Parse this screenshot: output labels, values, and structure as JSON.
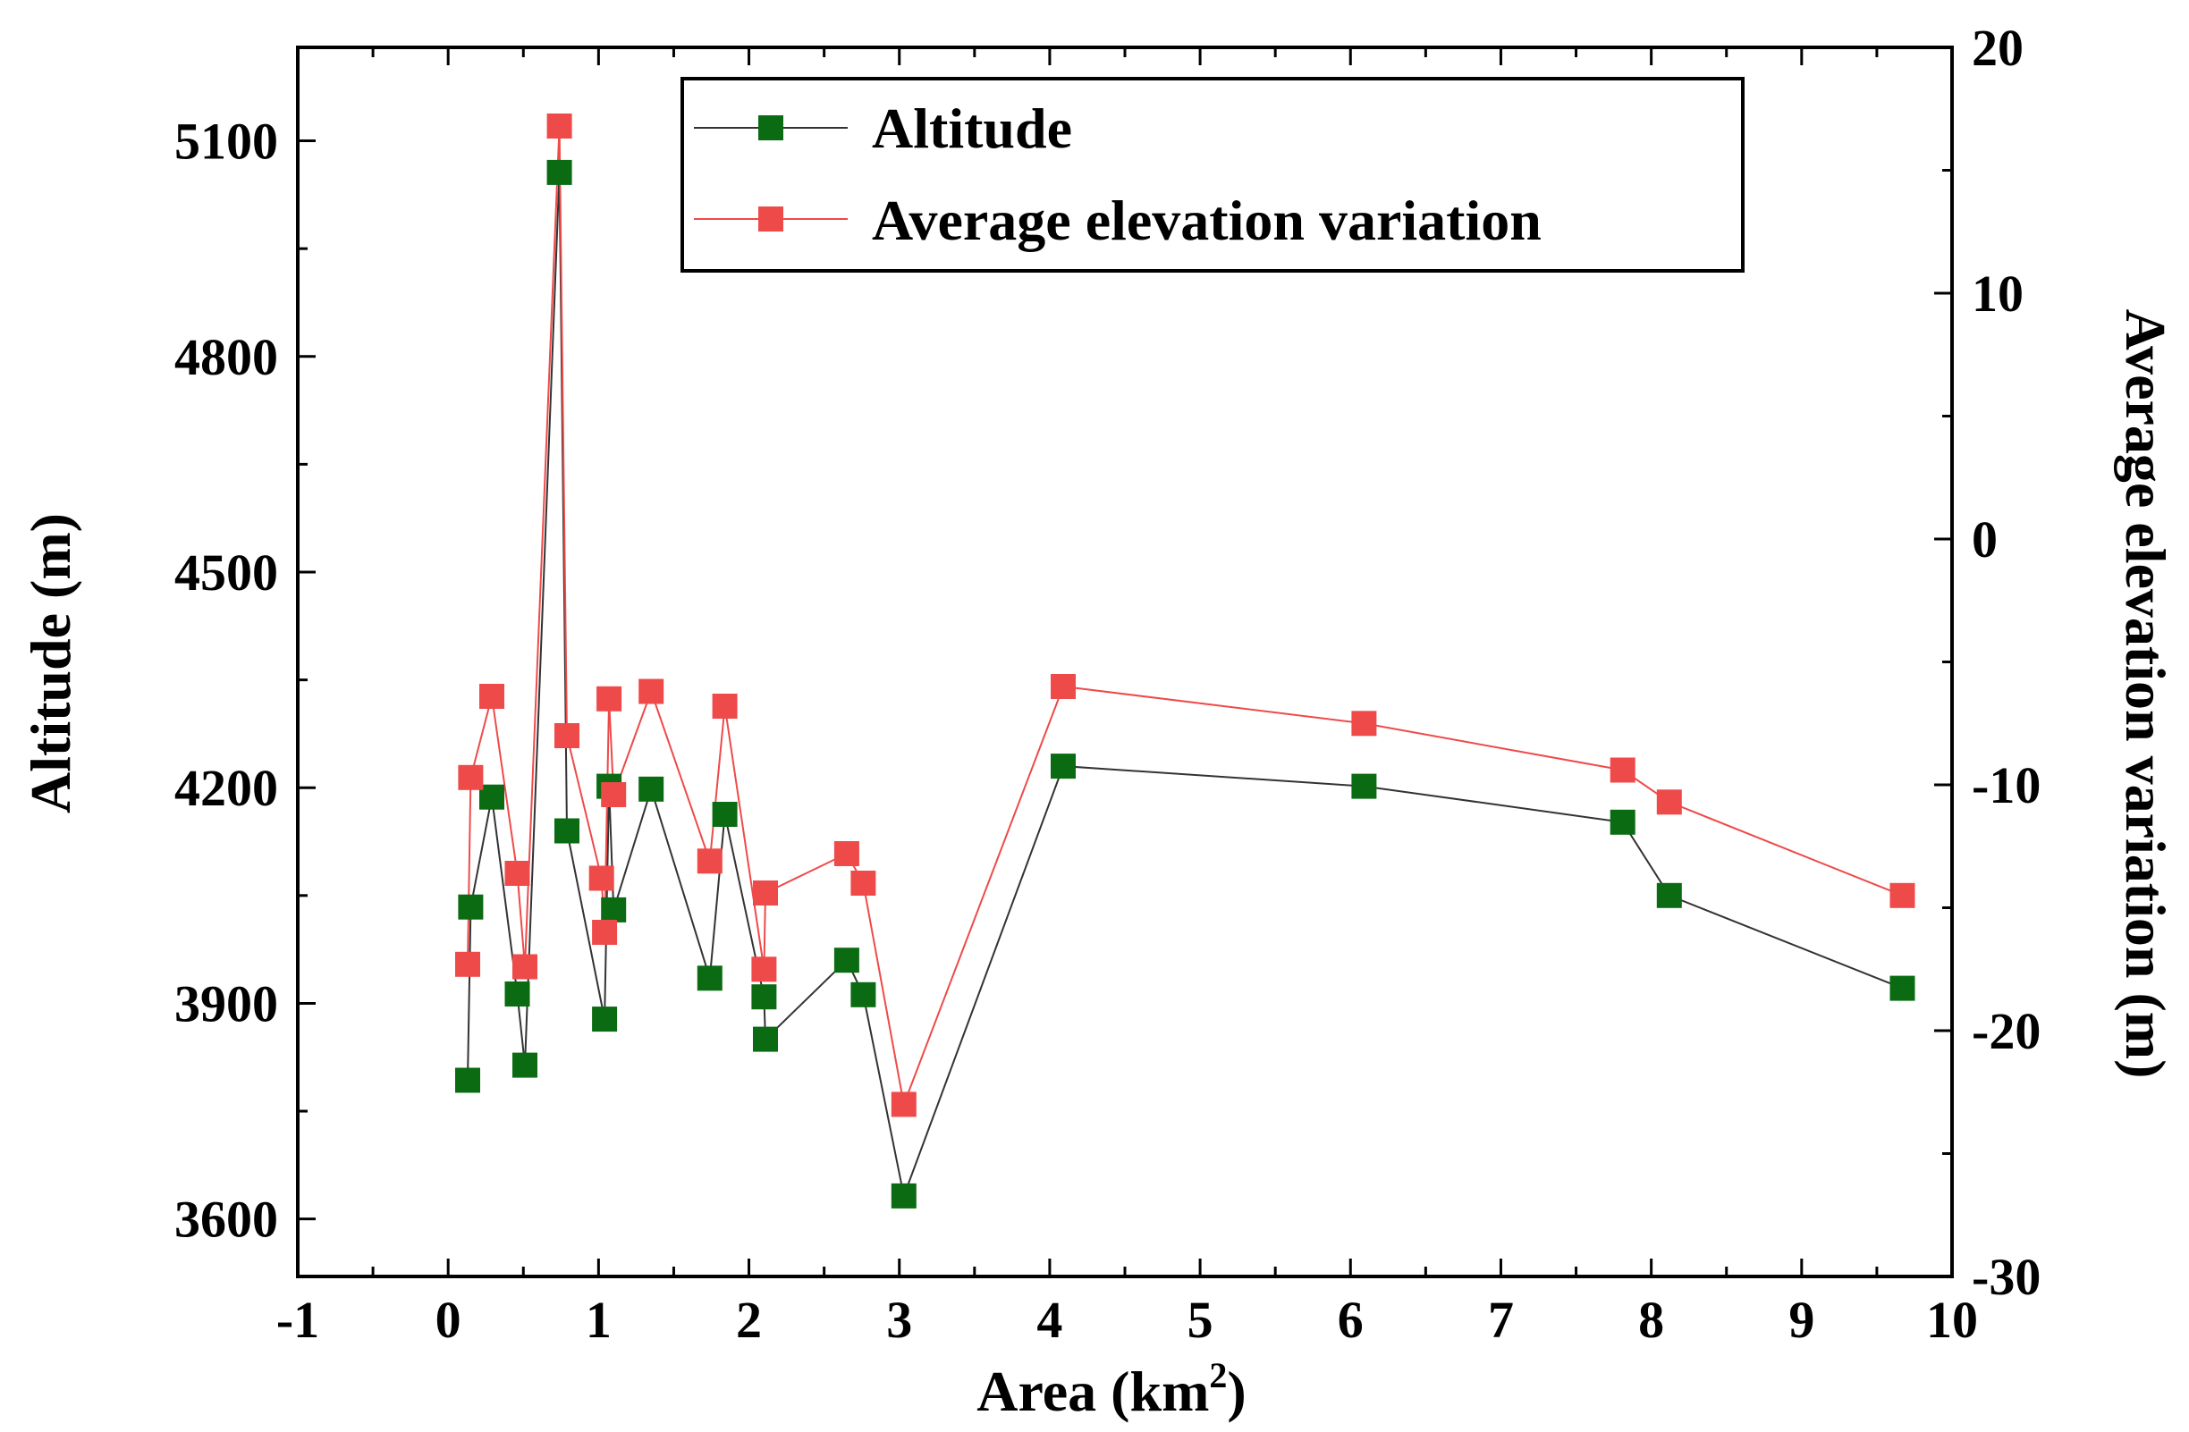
{
  "chart_data": {
    "type": "line",
    "title": "",
    "xlabel": "Area (km",
    "xlabel_superscript": "2",
    "xlabel_suffix": ")",
    "ylabel_left": "Altitude (m)",
    "ylabel_right": "Average elevation variation (m)",
    "xlim": [
      -1,
      10
    ],
    "ylim_left": [
      3520,
      5230
    ],
    "ylim_right": [
      -30,
      20
    ],
    "x_ticks": [
      "-1",
      "0",
      "1",
      "2",
      "3",
      "4",
      "5",
      "6",
      "7",
      "8",
      "9",
      "10"
    ],
    "x_tick_values": [
      -1,
      0,
      1,
      2,
      3,
      4,
      5,
      6,
      7,
      8,
      9,
      10
    ],
    "y_left_ticks": [
      "3600",
      "3900",
      "4200",
      "4500",
      "4800",
      "5100"
    ],
    "y_left_tick_values": [
      3600,
      3900,
      4200,
      4500,
      4800,
      5100
    ],
    "y_right_ticks": [
      "-30",
      "-20",
      "-10",
      "0",
      "10",
      "20"
    ],
    "y_right_tick_values": [
      -30,
      -20,
      -10,
      0,
      10,
      20
    ],
    "legend_position": "top-center",
    "series": [
      {
        "name": "Altitude",
        "axis": "left",
        "color": "#0a6b12",
        "line_color": "#333333",
        "x": [
          0.13,
          0.15,
          0.29,
          0.46,
          0.51,
          0.74,
          0.79,
          1.04,
          1.07,
          1.1,
          1.35,
          1.74,
          1.84,
          2.1,
          2.11,
          2.65,
          2.76,
          3.03,
          4.09,
          6.09,
          7.81,
          8.12,
          9.67
        ],
        "y": [
          3793,
          4034,
          4187,
          3913,
          3814,
          5056,
          4140,
          3878,
          4202,
          4030,
          4198,
          3935,
          4163,
          3909,
          3850,
          3960,
          3912,
          3632,
          4230,
          4202,
          4152,
          4050,
          3921
        ]
      },
      {
        "name": "Average elevation variation",
        "axis": "right",
        "color": "#ee4a4a",
        "line_color": "#ee4a4a",
        "x": [
          0.13,
          0.15,
          0.29,
          0.46,
          0.51,
          0.74,
          0.79,
          1.02,
          1.04,
          1.07,
          1.1,
          1.35,
          1.74,
          1.84,
          2.1,
          2.11,
          2.65,
          2.76,
          3.03,
          4.09,
          6.09,
          7.81,
          8.12,
          9.67
        ],
        "y": [
          -17.3,
          -9.7,
          -6.4,
          -13.6,
          -17.4,
          16.8,
          -8.0,
          -13.8,
          -16.0,
          -6.5,
          -10.4,
          -6.2,
          -13.1,
          -6.8,
          -17.5,
          -14.4,
          -12.8,
          -14.0,
          -23.0,
          -6.0,
          -7.5,
          -9.4,
          -10.7,
          -14.5
        ]
      }
    ]
  }
}
